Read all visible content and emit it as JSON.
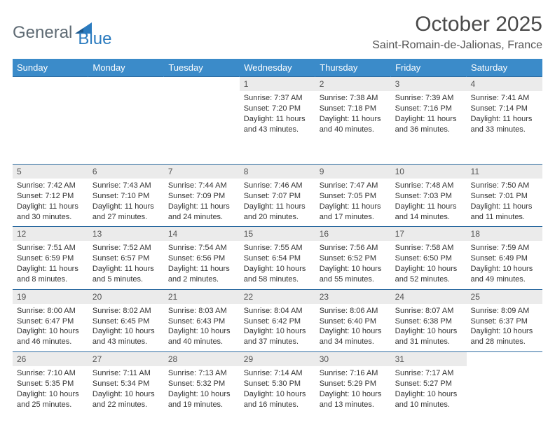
{
  "logo": {
    "general": "General",
    "blue": "Blue"
  },
  "title": "October 2025",
  "location": "Saint-Romain-de-Jalionas, France",
  "colors": {
    "header_bg": "#3b8bc9",
    "header_text": "#ffffff",
    "daynum_bg": "#ebebeb",
    "border": "#2b6aa0",
    "logo_gray": "#5e6a73",
    "logo_blue": "#2b7bbf"
  },
  "dayNames": [
    "Sunday",
    "Monday",
    "Tuesday",
    "Wednesday",
    "Thursday",
    "Friday",
    "Saturday"
  ],
  "weeks": [
    [
      null,
      null,
      null,
      {
        "n": "1",
        "sr": "7:37 AM",
        "ss": "7:20 PM",
        "dl": "11 hours and 43 minutes."
      },
      {
        "n": "2",
        "sr": "7:38 AM",
        "ss": "7:18 PM",
        "dl": "11 hours and 40 minutes."
      },
      {
        "n": "3",
        "sr": "7:39 AM",
        "ss": "7:16 PM",
        "dl": "11 hours and 36 minutes."
      },
      {
        "n": "4",
        "sr": "7:41 AM",
        "ss": "7:14 PM",
        "dl": "11 hours and 33 minutes."
      }
    ],
    [
      {
        "n": "5",
        "sr": "7:42 AM",
        "ss": "7:12 PM",
        "dl": "11 hours and 30 minutes."
      },
      {
        "n": "6",
        "sr": "7:43 AM",
        "ss": "7:10 PM",
        "dl": "11 hours and 27 minutes."
      },
      {
        "n": "7",
        "sr": "7:44 AM",
        "ss": "7:09 PM",
        "dl": "11 hours and 24 minutes."
      },
      {
        "n": "8",
        "sr": "7:46 AM",
        "ss": "7:07 PM",
        "dl": "11 hours and 20 minutes."
      },
      {
        "n": "9",
        "sr": "7:47 AM",
        "ss": "7:05 PM",
        "dl": "11 hours and 17 minutes."
      },
      {
        "n": "10",
        "sr": "7:48 AM",
        "ss": "7:03 PM",
        "dl": "11 hours and 14 minutes."
      },
      {
        "n": "11",
        "sr": "7:50 AM",
        "ss": "7:01 PM",
        "dl": "11 hours and 11 minutes."
      }
    ],
    [
      {
        "n": "12",
        "sr": "7:51 AM",
        "ss": "6:59 PM",
        "dl": "11 hours and 8 minutes."
      },
      {
        "n": "13",
        "sr": "7:52 AM",
        "ss": "6:57 PM",
        "dl": "11 hours and 5 minutes."
      },
      {
        "n": "14",
        "sr": "7:54 AM",
        "ss": "6:56 PM",
        "dl": "11 hours and 2 minutes."
      },
      {
        "n": "15",
        "sr": "7:55 AM",
        "ss": "6:54 PM",
        "dl": "10 hours and 58 minutes."
      },
      {
        "n": "16",
        "sr": "7:56 AM",
        "ss": "6:52 PM",
        "dl": "10 hours and 55 minutes."
      },
      {
        "n": "17",
        "sr": "7:58 AM",
        "ss": "6:50 PM",
        "dl": "10 hours and 52 minutes."
      },
      {
        "n": "18",
        "sr": "7:59 AM",
        "ss": "6:49 PM",
        "dl": "10 hours and 49 minutes."
      }
    ],
    [
      {
        "n": "19",
        "sr": "8:00 AM",
        "ss": "6:47 PM",
        "dl": "10 hours and 46 minutes."
      },
      {
        "n": "20",
        "sr": "8:02 AM",
        "ss": "6:45 PM",
        "dl": "10 hours and 43 minutes."
      },
      {
        "n": "21",
        "sr": "8:03 AM",
        "ss": "6:43 PM",
        "dl": "10 hours and 40 minutes."
      },
      {
        "n": "22",
        "sr": "8:04 AM",
        "ss": "6:42 PM",
        "dl": "10 hours and 37 minutes."
      },
      {
        "n": "23",
        "sr": "8:06 AM",
        "ss": "6:40 PM",
        "dl": "10 hours and 34 minutes."
      },
      {
        "n": "24",
        "sr": "8:07 AM",
        "ss": "6:38 PM",
        "dl": "10 hours and 31 minutes."
      },
      {
        "n": "25",
        "sr": "8:09 AM",
        "ss": "6:37 PM",
        "dl": "10 hours and 28 minutes."
      }
    ],
    [
      {
        "n": "26",
        "sr": "7:10 AM",
        "ss": "5:35 PM",
        "dl": "10 hours and 25 minutes."
      },
      {
        "n": "27",
        "sr": "7:11 AM",
        "ss": "5:34 PM",
        "dl": "10 hours and 22 minutes."
      },
      {
        "n": "28",
        "sr": "7:13 AM",
        "ss": "5:32 PM",
        "dl": "10 hours and 19 minutes."
      },
      {
        "n": "29",
        "sr": "7:14 AM",
        "ss": "5:30 PM",
        "dl": "10 hours and 16 minutes."
      },
      {
        "n": "30",
        "sr": "7:16 AM",
        "ss": "5:29 PM",
        "dl": "10 hours and 13 minutes."
      },
      {
        "n": "31",
        "sr": "7:17 AM",
        "ss": "5:27 PM",
        "dl": "10 hours and 10 minutes."
      },
      null
    ]
  ],
  "labels": {
    "sunrise": "Sunrise:",
    "sunset": "Sunset:",
    "daylight": "Daylight:"
  }
}
